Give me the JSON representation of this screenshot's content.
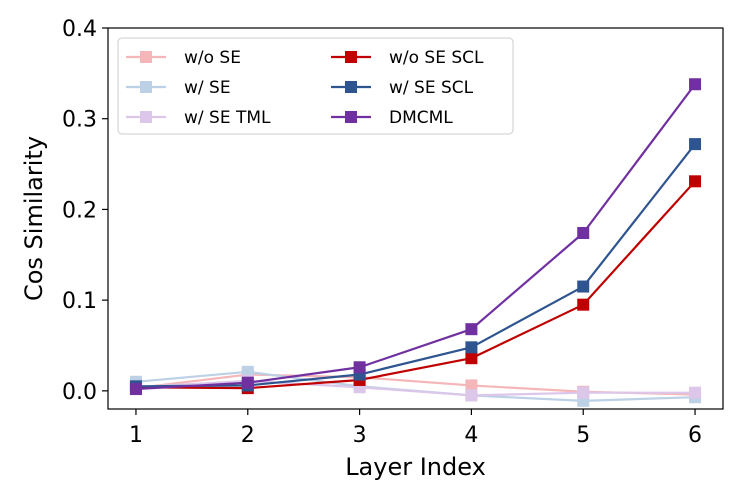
{
  "chart_data": {
    "type": "line",
    "title": "",
    "xlabel": "Layer Index",
    "ylabel": "Cos Similarity",
    "x": [
      1,
      2,
      3,
      4,
      5,
      6
    ],
    "xlim": [
      0.75,
      6.25
    ],
    "ylim": [
      -0.02,
      0.4
    ],
    "xticks": [
      "1",
      "2",
      "3",
      "4",
      "5",
      "6"
    ],
    "yticks": [
      "0.0",
      "0.1",
      "0.2",
      "0.3",
      "0.4"
    ],
    "grid": false,
    "legend_position": "top-left",
    "series": [
      {
        "name": "w/o SE",
        "color": "#f4b6b8",
        "values": [
          0.003,
          0.018,
          0.015,
          0.006,
          -0.001,
          -0.004
        ]
      },
      {
        "name": "w/ SE",
        "color": "#bcd0e6",
        "values": [
          0.01,
          0.021,
          0.005,
          -0.005,
          -0.011,
          -0.007
        ]
      },
      {
        "name": "w/ SE TML",
        "color": "#dcc6ea",
        "values": [
          0.004,
          0.011,
          0.004,
          -0.005,
          -0.002,
          -0.002
        ]
      },
      {
        "name": "w/o SE SCL",
        "color": "#c00000",
        "values": [
          0.004,
          0.003,
          0.012,
          0.036,
          0.095,
          0.231
        ]
      },
      {
        "name": "w/ SE SCL",
        "color": "#2f5591",
        "values": [
          0.005,
          0.006,
          0.018,
          0.048,
          0.115,
          0.272
        ]
      },
      {
        "name": "DMCML",
        "color": "#7030a0",
        "values": [
          0.002,
          0.009,
          0.026,
          0.068,
          0.174,
          0.338
        ]
      }
    ]
  }
}
